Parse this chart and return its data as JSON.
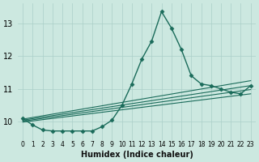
{
  "xlabel": "Humidex (Indice chaleur)",
  "bg_color": "#cce8e0",
  "grid_color": "#aacfc8",
  "line_color": "#1a6b5a",
  "xlim": [
    -0.5,
    23.5
  ],
  "ylim": [
    9.45,
    13.6
  ],
  "yticks": [
    10,
    11,
    12,
    13
  ],
  "xtick_labels": [
    "0",
    "1",
    "2",
    "3",
    "4",
    "5",
    "6",
    "7",
    "8",
    "9",
    "10",
    "11",
    "12",
    "13",
    "14",
    "15",
    "16",
    "17",
    "18",
    "19",
    "20",
    "21",
    "22",
    "23"
  ],
  "main_curve": [
    10.1,
    9.9,
    9.75,
    9.72,
    9.72,
    9.72,
    9.72,
    9.72,
    9.85,
    10.05,
    10.5,
    11.15,
    11.9,
    12.45,
    13.35,
    12.85,
    12.2,
    11.4,
    11.15,
    11.1,
    11.0,
    10.9,
    10.85,
    11.1
  ],
  "straight_lines": [
    {
      "x0": 0,
      "y0": 10.08,
      "x1": 23,
      "y1": 11.25
    },
    {
      "x0": 0,
      "y0": 10.05,
      "x1": 23,
      "y1": 11.1
    },
    {
      "x0": 0,
      "y0": 10.02,
      "x1": 23,
      "y1": 10.98
    },
    {
      "x0": 0,
      "y0": 9.99,
      "x1": 23,
      "y1": 10.85
    }
  ],
  "marker": "D",
  "marker_size": 2.5
}
